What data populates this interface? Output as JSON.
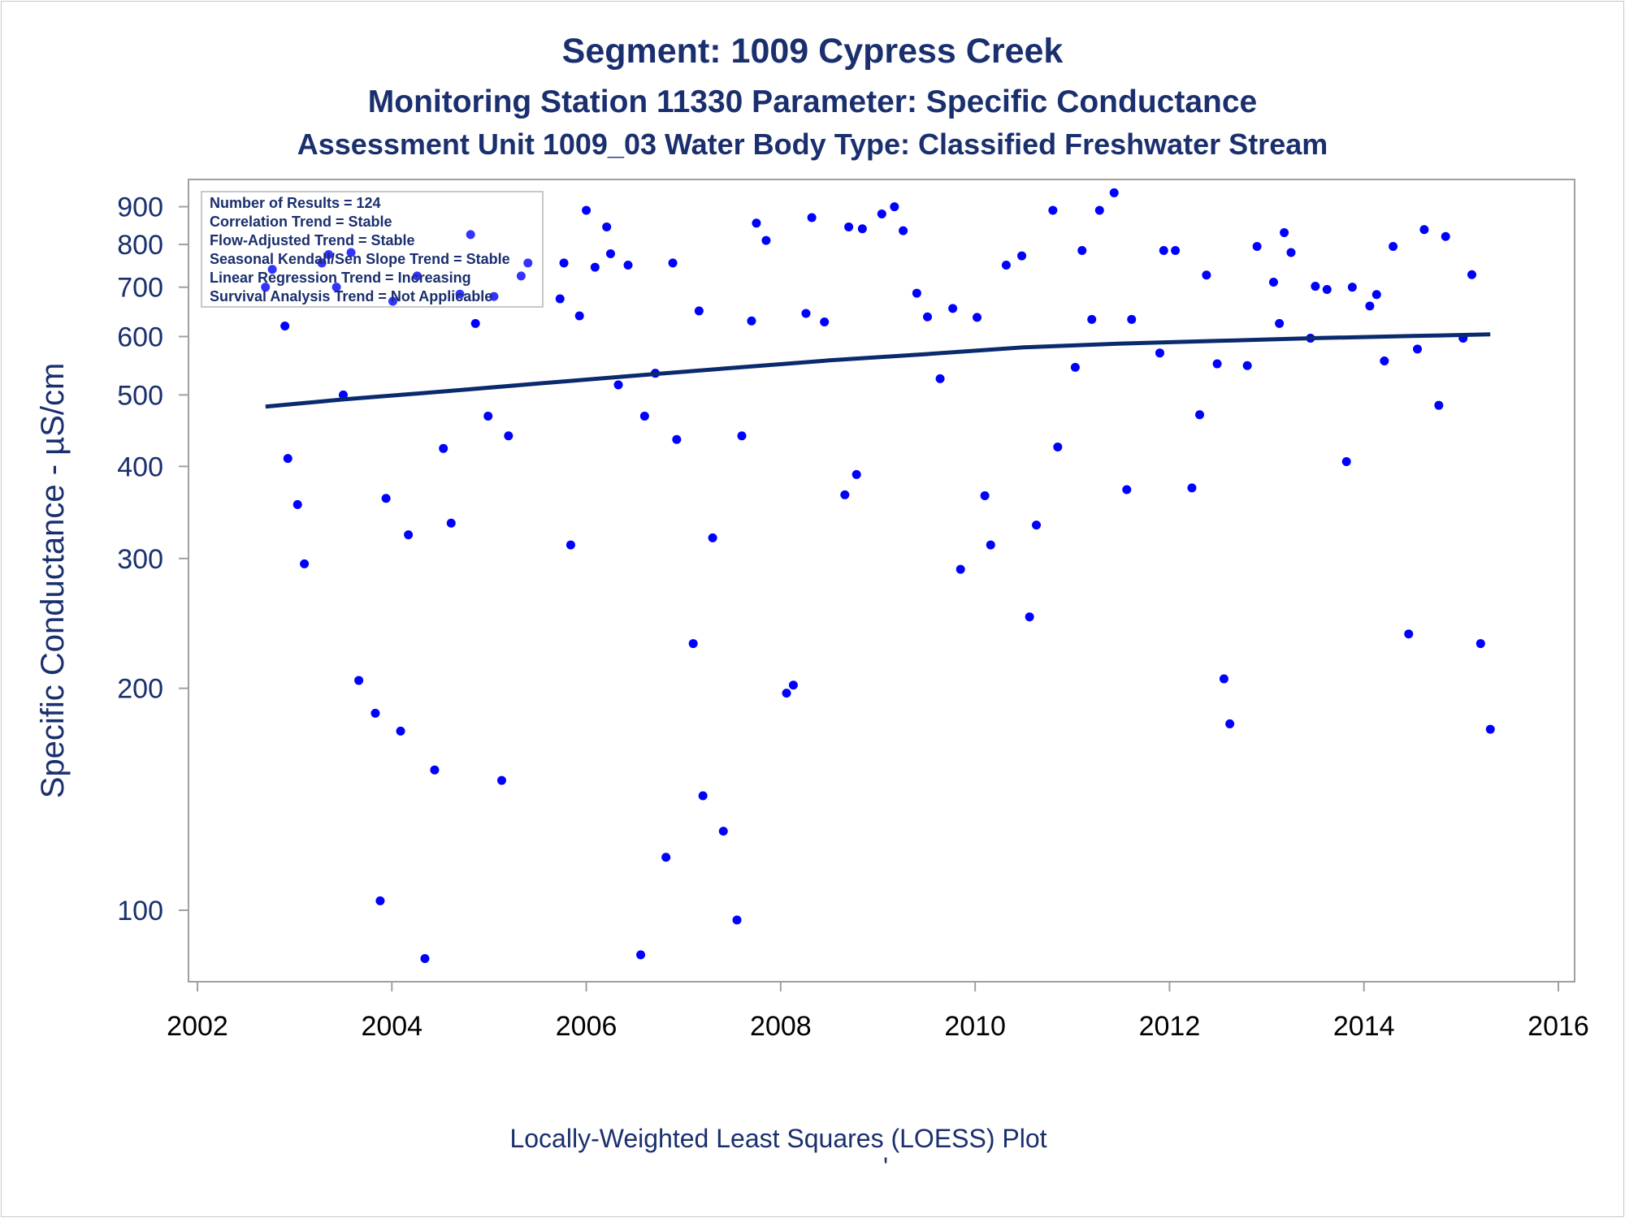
{
  "titles": {
    "line1": "Segment: 1009  Cypress Creek",
    "line2": "Monitoring Station 11330 Parameter: Specific Conductance",
    "line3": "Assessment Unit 1009_03   Water Body Type: Classified Freshwater Stream"
  },
  "footnote": "Locally-Weighted Least Squares (LOESS) Plot",
  "footnote_mark": "'",
  "stats_box": [
    "Number of Results = 124",
    "Correlation Trend = Stable",
    "Flow-Adjusted Trend = Stable",
    "Seasonal Kendall/Sen Slope Trend = Stable",
    "Linear Regression Trend = Increasing",
    "Survival Analysis Trend = Not Applicable"
  ],
  "colors": {
    "title": "#1a2f6e",
    "point": "#0000ff",
    "trend_line": "#0a2a6e",
    "axis_x_text": "#000000",
    "axis_y_text": "#1a2f6e",
    "frame": "#a0a0a0"
  },
  "chart_data": {
    "type": "scatter",
    "xlabel": "",
    "ylabel": "Specific Conductance -  µS/cm",
    "xlim": [
      2002,
      2016
    ],
    "ylim": [
      80,
      980
    ],
    "yscale": "log",
    "xticks": [
      2002,
      2004,
      2006,
      2008,
      2010,
      2012,
      2014,
      2016
    ],
    "yticks": [
      100,
      200,
      300,
      400,
      500,
      600,
      700,
      800,
      900
    ],
    "grid": false,
    "legend": "top-left inset",
    "series": [
      {
        "kind": "points",
        "x": [
          2002.7,
          2002.77,
          2002.9,
          2002.93,
          2003.03,
          2003.1,
          2003.28,
          2003.35,
          2003.43,
          2003.5,
          2003.58,
          2003.66,
          2003.83,
          2003.88,
          2003.94,
          2004.01,
          2004.09,
          2004.17,
          2004.26,
          2004.34,
          2004.44,
          2004.53,
          2004.61,
          2004.7,
          2004.81,
          2004.86,
          2004.99,
          2005.05,
          2005.13,
          2005.2,
          2005.33,
          2005.4,
          2005.73,
          2005.77,
          2005.84,
          2005.93,
          2006.0,
          2006.09,
          2006.21,
          2006.25,
          2006.33,
          2006.43,
          2006.56,
          2006.6,
          2006.71,
          2006.82,
          2006.89,
          2006.93,
          2007.1,
          2007.16,
          2007.2,
          2007.3,
          2007.41,
          2007.55,
          2007.6,
          2007.7,
          2007.75,
          2007.85,
          2008.06,
          2008.13,
          2008.26,
          2008.32,
          2008.45,
          2008.66,
          2008.7,
          2008.78,
          2008.84,
          2009.04,
          2009.17,
          2009.26,
          2009.4,
          2009.51,
          2009.64,
          2009.77,
          2009.85,
          2010.02,
          2010.1,
          2010.16,
          2010.32,
          2010.48,
          2010.56,
          2010.63,
          2010.8,
          2010.85,
          2011.03,
          2011.1,
          2011.2,
          2011.28,
          2011.43,
          2011.56,
          2011.61,
          2011.9,
          2011.94,
          2012.06,
          2012.23,
          2012.31,
          2012.38,
          2012.49,
          2012.56,
          2012.62,
          2012.8,
          2012.9,
          2013.07,
          2013.13,
          2013.18,
          2013.25,
          2013.45,
          2013.5,
          2013.62,
          2013.82,
          2013.88,
          2014.06,
          2014.13,
          2014.21,
          2014.3,
          2014.46,
          2014.55,
          2014.62,
          2014.77,
          2014.84,
          2015.02,
          2015.11,
          2015.2,
          2015.3
        ],
        "y": [
          700,
          740,
          620,
          410,
          355,
          295,
          755,
          775,
          700,
          500,
          780,
          205,
          185,
          103,
          362,
          670,
          175,
          323,
          725,
          86,
          155,
          423,
          335,
          685,
          825,
          625,
          468,
          680,
          150,
          440,
          725,
          755,
          675,
          755,
          313,
          640,
          890,
          745,
          845,
          777,
          516,
          750,
          87,
          468,
          535,
          118,
          755,
          435,
          230,
          650,
          143,
          320,
          128,
          97,
          440,
          630,
          855,
          810,
          197,
          202,
          645,
          870,
          628,
          366,
          845,
          390,
          840,
          880,
          900,
          835,
          687,
          638,
          526,
          655,
          290,
          637,
          365,
          313,
          750,
          772,
          250,
          333,
          890,
          425,
          545,
          785,
          633,
          890,
          940,
          372,
          633,
          570,
          785,
          785,
          374,
          470,
          727,
          551,
          206,
          179,
          548,
          795,
          711,
          625,
          830,
          780,
          597,
          702,
          695,
          406,
          700,
          660,
          684,
          556,
          795,
          237,
          577,
          838,
          484,
          820,
          597,
          728,
          230,
          176
        ]
      },
      {
        "kind": "loess",
        "x": [
          2002.7,
          2003.5,
          2004.5,
          2005.5,
          2006.5,
          2007.5,
          2008.5,
          2009.5,
          2010.5,
          2011.5,
          2012.5,
          2013.5,
          2014.5,
          2015.3
        ],
        "y": [
          482,
          493,
          505,
          518,
          531,
          544,
          557,
          568,
          580,
          587,
          592,
          597,
          601,
          604
        ]
      }
    ]
  }
}
